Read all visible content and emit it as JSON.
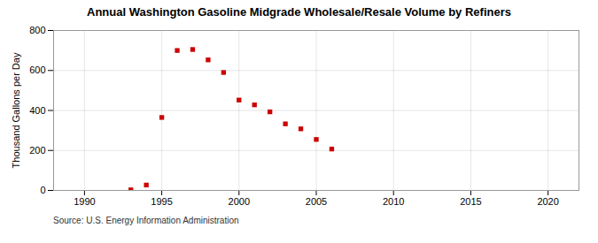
{
  "chart_data": {
    "type": "scatter",
    "title": "Annual Washington Gasoline Midgrade Wholesale/Resale Volume by Refiners",
    "ylabel": "Thousand Gallons per Day",
    "source": "Source: U.S. Energy Information Administration",
    "x": [
      1993,
      1994,
      1995,
      1996,
      1997,
      1998,
      1999,
      2000,
      2001,
      2002,
      2003,
      2004,
      2005,
      2006
    ],
    "values": [
      3,
      27,
      365,
      700,
      705,
      653,
      590,
      452,
      428,
      393,
      333,
      308,
      255,
      207
    ],
    "color": "#cc0000",
    "marker": "square",
    "xlim": [
      1988,
      2022
    ],
    "ylim": [
      0,
      800
    ],
    "xticks": [
      1990,
      1995,
      2000,
      2005,
      2010,
      2015,
      2020
    ],
    "yticks": [
      0,
      200,
      400,
      600,
      800
    ],
    "grid": true
  }
}
